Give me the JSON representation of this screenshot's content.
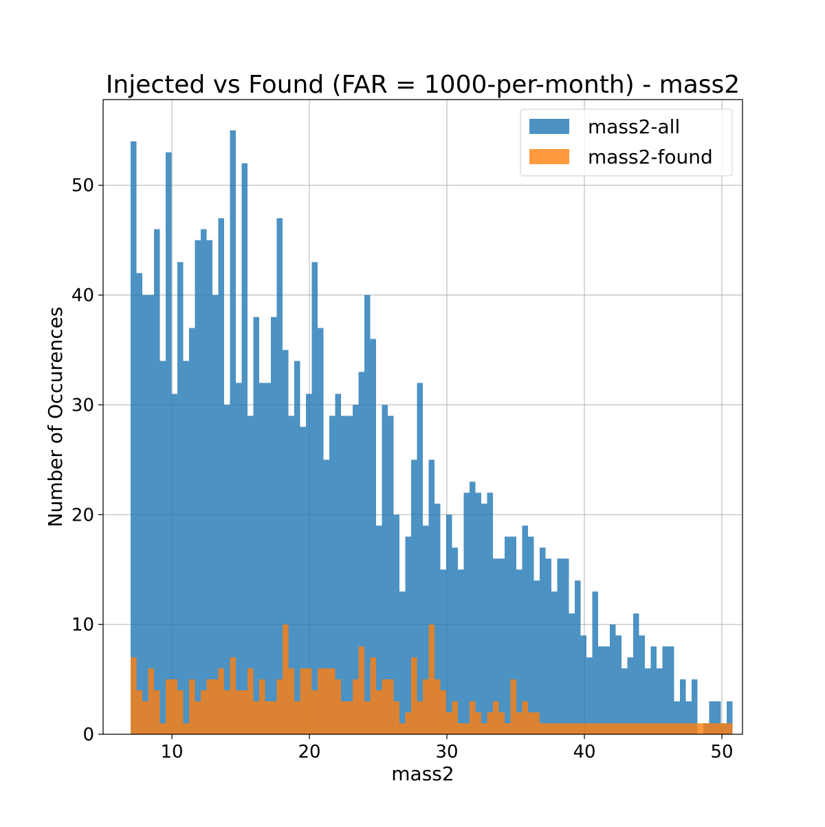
{
  "chart_data": {
    "type": "bar",
    "title": "Injected vs Found (FAR = 1000-per-month) - mass2",
    "xlabel": "mass2",
    "ylabel": "Number of Occurences",
    "xlim": [
      5,
      51.5
    ],
    "ylim": [
      0,
      57.8
    ],
    "x_ticks": [
      10,
      20,
      30,
      40,
      50
    ],
    "y_ticks": [
      0,
      10,
      20,
      30,
      40,
      50
    ],
    "grid": true,
    "legend_position": "top-right",
    "bins": {
      "start": 7.0,
      "width": 0.425
    },
    "series": [
      {
        "name": "mass2-all",
        "color": "#1f77b4",
        "opacity": 0.8,
        "values": [
          54,
          42,
          40,
          40,
          46,
          34,
          53,
          31,
          43,
          34,
          37,
          45,
          46,
          45,
          40,
          47,
          30,
          55,
          32,
          52,
          29,
          38,
          32,
          32,
          38,
          47,
          35,
          29,
          34,
          28,
          31,
          43,
          37,
          25,
          29,
          31,
          29,
          29,
          30,
          33,
          40,
          36,
          19,
          30,
          29,
          20,
          13,
          18,
          25,
          32,
          19,
          25,
          21,
          15,
          20,
          17,
          15,
          22,
          23,
          22,
          21,
          22,
          16,
          16,
          18,
          18,
          15,
          19,
          18,
          14,
          17,
          16,
          13,
          16,
          16,
          11,
          14,
          9,
          7,
          13,
          8,
          8,
          10,
          9,
          6,
          7,
          11,
          9,
          6,
          8,
          6,
          8,
          8,
          3,
          5,
          3,
          5,
          0,
          1,
          3,
          3,
          1,
          3
        ]
      },
      {
        "name": "mass2-found",
        "color": "#ff7f0e",
        "opacity": 0.8,
        "values": [
          7,
          4,
          3,
          6,
          4,
          1,
          5,
          5,
          4,
          1,
          5,
          3,
          4,
          5,
          5,
          6,
          4,
          7,
          4,
          4,
          6,
          3,
          5,
          3,
          3,
          5,
          10,
          6,
          3,
          6,
          6,
          4,
          6,
          6,
          6,
          5,
          3,
          3,
          5,
          8,
          3,
          7,
          4,
          5,
          5,
          3,
          1,
          2,
          7,
          3,
          5,
          10,
          5,
          4,
          2,
          3,
          1,
          1,
          3,
          2,
          1,
          2,
          3,
          2,
          1,
          5,
          2,
          3,
          2,
          2,
          1,
          1,
          1,
          1,
          1,
          1,
          1,
          1,
          1,
          1,
          1,
          1,
          1,
          1,
          1,
          1,
          1,
          1,
          1,
          1,
          1,
          1,
          1,
          1,
          1,
          1,
          1,
          1,
          1,
          1,
          1,
          1,
          1
        ]
      }
    ]
  }
}
